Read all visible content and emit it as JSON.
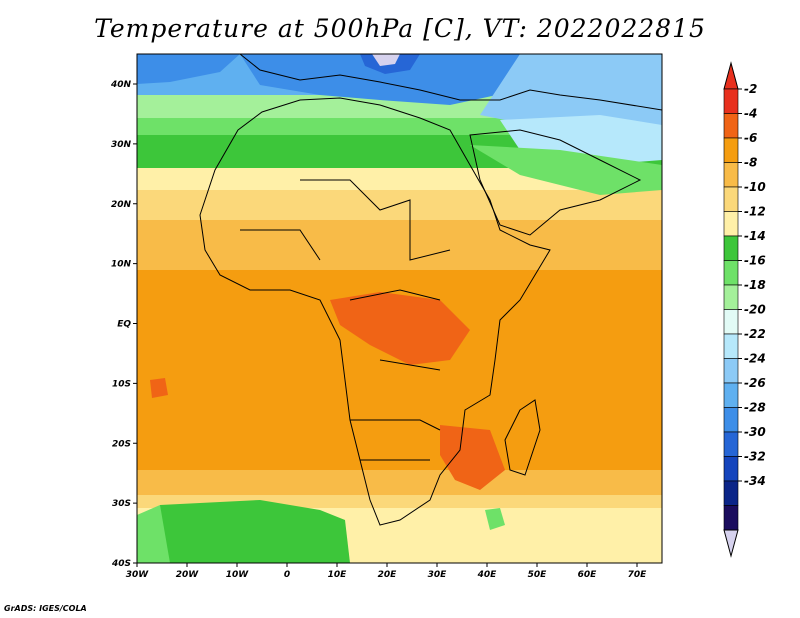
{
  "title": "Temperature at 500hPa [C], VT: 2022022815",
  "credit": "GrADS: IGES/COLA",
  "map": {
    "lon_ticks": [
      "30W",
      "20W",
      "10W",
      "0",
      "10E",
      "20E",
      "30E",
      "40E",
      "50E",
      "60E",
      "70E"
    ],
    "lat_ticks": [
      "40N",
      "30N",
      "20N",
      "10N",
      "EQ",
      "10S",
      "20S",
      "30S",
      "40S"
    ]
  },
  "colorbar": {
    "levels": [
      "-2",
      "-4",
      "-6",
      "-8",
      "-10",
      "-12",
      "-14",
      "-16",
      "-18",
      "-20",
      "-22",
      "-24",
      "-26",
      "-28",
      "-30",
      "-32",
      "-34"
    ],
    "colors": [
      "#e8301e",
      "#f06416",
      "#f59d10",
      "#f8bb48",
      "#fbd87a",
      "#fff0a8",
      "#3dc63a",
      "#6ee168",
      "#a4f09a",
      "#e2fbf6",
      "#b6e8fb",
      "#8ccaf6",
      "#5fb0f0",
      "#3d8ee8",
      "#2666d6",
      "#1545bd",
      "#0b2588",
      "#1b0d5e"
    ],
    "top_color": "#e8301e",
    "bottom_color": "#d6d2ee"
  }
}
